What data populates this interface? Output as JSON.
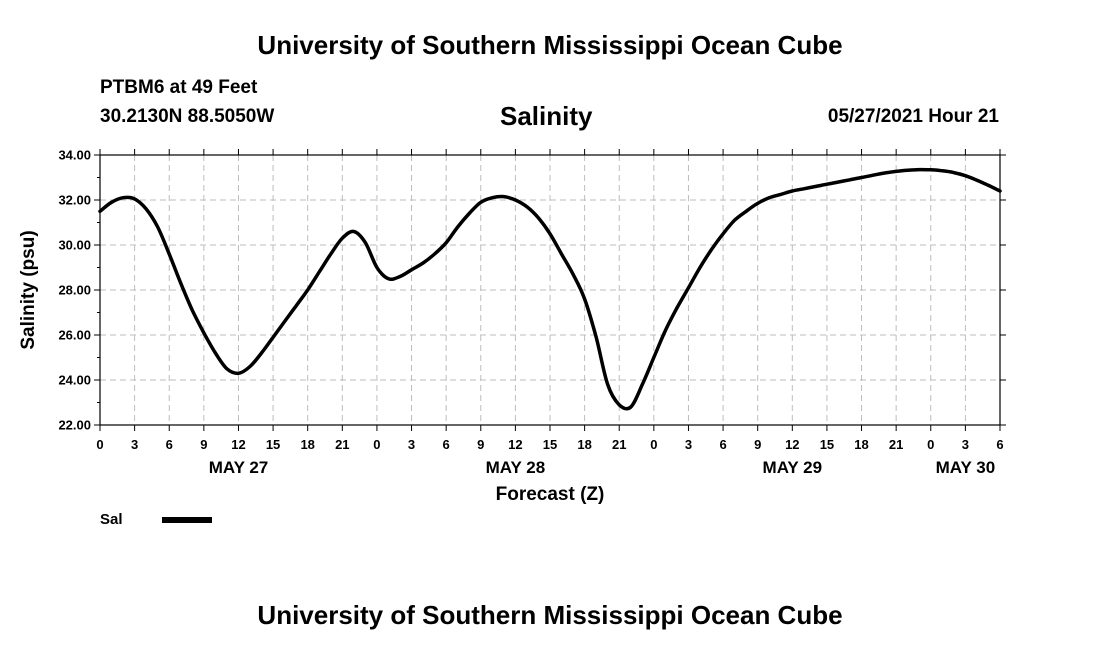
{
  "header": {
    "top_title": "University of Southern Mississippi Ocean Cube",
    "station": "PTBM6 at 49 Feet",
    "coords": "30.2130N  88.5050W",
    "timestamp": "05/27/2021 Hour 21",
    "bottom_title": "University of Southern Mississippi Ocean Cube"
  },
  "chart_data": {
    "type": "line",
    "title": "Salinity",
    "xlabel": "Forecast (Z)",
    "ylabel": "Salinity (psu)",
    "x_unit": "hours from 05/27/2021 00Z",
    "xlim": [
      0,
      78
    ],
    "ylim": [
      22,
      34
    ],
    "yticks": [
      "22.00",
      "24.00",
      "26.00",
      "28.00",
      "30.00",
      "32.00",
      "34.00"
    ],
    "xtick_labels": [
      "0",
      "3",
      "6",
      "9",
      "12",
      "15",
      "18",
      "21",
      "0",
      "3",
      "6",
      "9",
      "12",
      "15",
      "18",
      "21",
      "0",
      "3",
      "6",
      "9",
      "12",
      "15",
      "18",
      "21",
      "0",
      "3",
      "6"
    ],
    "date_labels": [
      {
        "label": "MAY 27",
        "hour": 12
      },
      {
        "label": "MAY 28",
        "hour": 36
      },
      {
        "label": "MAY 29",
        "hour": 60
      },
      {
        "label": "MAY 30",
        "hour": 75
      }
    ],
    "grid": true,
    "legend": [
      {
        "name": "Sal",
        "color": "#000000"
      }
    ],
    "series": [
      {
        "name": "Sal",
        "x": [
          0,
          1,
          2,
          3,
          4,
          5,
          6,
          7,
          8,
          9,
          10,
          11,
          12,
          13,
          14,
          15,
          16,
          17,
          18,
          19,
          20,
          21,
          22,
          23,
          24,
          25,
          26,
          27,
          28,
          29,
          30,
          31,
          32,
          33,
          34,
          35,
          36,
          37,
          38,
          39,
          40,
          41,
          42,
          43,
          44,
          45,
          46,
          47,
          48,
          49,
          50,
          51,
          52,
          53,
          54,
          55,
          56,
          57,
          58,
          59,
          60,
          61,
          62,
          63,
          64,
          65,
          66,
          67,
          68,
          69,
          70,
          71,
          72,
          73,
          74,
          75,
          76,
          77,
          78
        ],
        "y": [
          31.5,
          31.9,
          32.1,
          32.05,
          31.6,
          30.8,
          29.6,
          28.3,
          27.1,
          26.1,
          25.2,
          24.5,
          24.3,
          24.6,
          25.2,
          25.9,
          26.6,
          27.3,
          28.0,
          28.8,
          29.6,
          30.3,
          30.6,
          30.1,
          29.0,
          28.5,
          28.6,
          28.9,
          29.2,
          29.6,
          30.1,
          30.8,
          31.4,
          31.9,
          32.1,
          32.15,
          32.0,
          31.7,
          31.2,
          30.5,
          29.6,
          28.7,
          27.6,
          25.9,
          23.8,
          22.9,
          22.8,
          23.8,
          25.0,
          26.2,
          27.2,
          28.1,
          29.0,
          29.8,
          30.5,
          31.1,
          31.5,
          31.85,
          32.1,
          32.25,
          32.4,
          32.5,
          32.6,
          32.7,
          32.8,
          32.9,
          33.0,
          33.1,
          33.2,
          33.27,
          33.32,
          33.35,
          33.34,
          33.3,
          33.22,
          33.08,
          32.88,
          32.65,
          32.4
        ]
      }
    ]
  }
}
